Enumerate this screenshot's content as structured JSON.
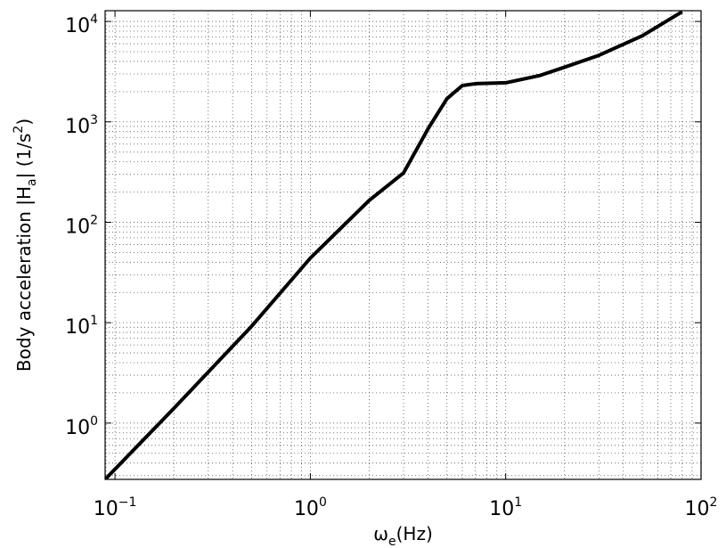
{
  "chart_data": {
    "type": "line",
    "log_x": true,
    "log_y": true,
    "grid": true,
    "minor_grid": true,
    "xlabel": [
      {
        "text": "ω"
      },
      {
        "text": "e",
        "shift": "sub"
      },
      {
        "text": "(Hz)"
      }
    ],
    "ylabel": [
      {
        "text": "Body acceleration |H"
      },
      {
        "text": "a",
        "shift": "sub"
      },
      {
        "text": "| (1/s"
      },
      {
        "text": "2",
        "shift": "sup"
      },
      {
        "text": ")"
      }
    ],
    "xlim": [
      0.089,
      100
    ],
    "ylim": [
      0.275,
      12800
    ],
    "xticks": [
      {
        "value": 0.1,
        "label": "10",
        "exponent": "−1"
      },
      {
        "value": 1,
        "label": "10",
        "exponent": "0"
      },
      {
        "value": 10,
        "label": "10",
        "exponent": "1"
      },
      {
        "value": 100,
        "label": "10",
        "exponent": "2"
      }
    ],
    "yticks": [
      {
        "value": 1,
        "label": "10",
        "exponent": "0"
      },
      {
        "value": 10,
        "label": "10",
        "exponent": "1"
      },
      {
        "value": 100,
        "label": "10",
        "exponent": "2"
      },
      {
        "value": 1000,
        "label": "10",
        "exponent": "3"
      },
      {
        "value": 10000,
        "label": "10",
        "exponent": "4"
      }
    ],
    "x": [
      0.089,
      0.2,
      0.5,
      1,
      2,
      3,
      4,
      5,
      6,
      7,
      10,
      15,
      20,
      30,
      50,
      80
    ],
    "series": [
      {
        "color": "#000000",
        "values": [
          0.275,
          1.4,
          9.2,
          44,
          165,
          310,
          850,
          1700,
          2300,
          2400,
          2450,
          2900,
          3500,
          4600,
          7200,
          12500
        ]
      }
    ]
  }
}
